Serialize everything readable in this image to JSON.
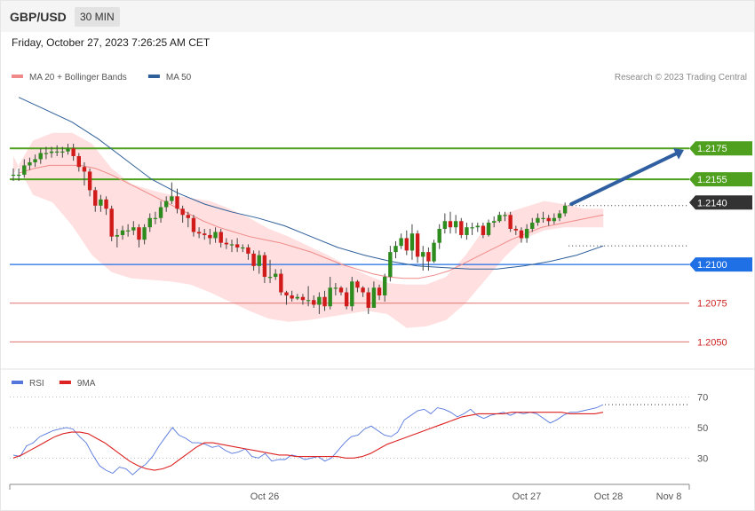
{
  "header": {
    "symbol": "GBP/USD",
    "timeframe": "30 MIN"
  },
  "date_line": "Friday, October 27, 2023 7:26:25 AM CET",
  "credit": "Research © 2023 Trading Central",
  "colors": {
    "up_candle": "#2e8b1e",
    "down_candle": "#d11a1a",
    "ma20": "#f08a8a",
    "bb_fill": "#ffd9d9",
    "ma50": "#2f5f99",
    "resistance": "#4ea01e",
    "support_blue": "#1f6fe5",
    "support_red": "#e07070",
    "arrow": "#2f5fa0",
    "rsi": "#5577dd",
    "rsi_ma": "#dd2222"
  },
  "chart_data": [
    {
      "type": "candlestick",
      "legend": [
        {
          "name": "MA 20 + Bollinger Bands",
          "color": "#f08a8a"
        },
        {
          "name": "MA 50",
          "color": "#2f5f99"
        }
      ],
      "x_tick_labels": [
        "Oct 26",
        "Oct 27",
        "Oct 28",
        "Nov 8"
      ],
      "y_range": [
        1.2033,
        1.2225
      ],
      "levels": [
        {
          "value": 1.2175,
          "label": "1.2175",
          "style": "resistance"
        },
        {
          "value": 1.2155,
          "label": "1.2155",
          "style": "resistance"
        },
        {
          "value": 1.214,
          "label": "1.2140",
          "style": "current"
        },
        {
          "value": 1.21,
          "label": "1.2100",
          "style": "support_blue"
        },
        {
          "value": 1.2075,
          "label": "1.2075",
          "style": "support_red"
        },
        {
          "value": 1.205,
          "label": "1.2050",
          "style": "support_red"
        }
      ],
      "forecast_arrow": {
        "from": 1.2139,
        "to": 1.2174
      },
      "candles": [
        [
          1.2158,
          1.2158,
          1.2162,
          1.2154
        ],
        [
          1.2158,
          1.2158,
          1.2162,
          1.2154
        ],
        [
          1.2158,
          1.2164,
          1.2168,
          1.2156
        ],
        [
          1.2164,
          1.2166,
          1.2169,
          1.2161
        ],
        [
          1.2166,
          1.2168,
          1.2171,
          1.2163
        ],
        [
          1.2168,
          1.2172,
          1.2175,
          1.2165
        ],
        [
          1.2172,
          1.2172,
          1.2176,
          1.2168
        ],
        [
          1.2172,
          1.2173,
          1.2176,
          1.2169
        ],
        [
          1.2173,
          1.2173,
          1.2177,
          1.217
        ],
        [
          1.2173,
          1.2173,
          1.2176,
          1.2169
        ],
        [
          1.2173,
          1.2175,
          1.2178,
          1.2171
        ],
        [
          1.2175,
          1.217,
          1.2178,
          1.2167
        ],
        [
          1.217,
          1.2163,
          1.2172,
          1.216
        ],
        [
          1.2163,
          1.216,
          1.2166,
          1.2151
        ],
        [
          1.216,
          1.2148,
          1.2162,
          1.2144
        ],
        [
          1.2148,
          1.2138,
          1.215,
          1.2134
        ],
        [
          1.2138,
          1.2142,
          1.2145,
          1.2134
        ],
        [
          1.2142,
          1.2136,
          1.2144,
          1.2132
        ],
        [
          1.2136,
          1.2118,
          1.2138,
          1.2115
        ],
        [
          1.2118,
          1.2119,
          1.2123,
          1.2111
        ],
        [
          1.2119,
          1.2122,
          1.2125,
          1.2116
        ],
        [
          1.2122,
          1.2122,
          1.2126,
          1.2118
        ],
        [
          1.2122,
          1.2124,
          1.2128,
          1.2119
        ],
        [
          1.2124,
          1.2116,
          1.2126,
          1.2111
        ],
        [
          1.2116,
          1.2124,
          1.2126,
          1.2113
        ],
        [
          1.2124,
          1.213,
          1.2133,
          1.2121
        ],
        [
          1.213,
          1.213,
          1.2134,
          1.2126
        ],
        [
          1.213,
          1.2137,
          1.2141,
          1.2127
        ],
        [
          1.2137,
          1.2141,
          1.2144,
          1.2134
        ],
        [
          1.2141,
          1.2144,
          1.2153,
          1.2139
        ],
        [
          1.2144,
          1.2136,
          1.2149,
          1.2133
        ],
        [
          1.2136,
          1.2132,
          1.2138,
          1.2127
        ],
        [
          1.2132,
          1.213,
          1.2134,
          1.2124
        ],
        [
          1.213,
          1.2121,
          1.2132,
          1.2118
        ],
        [
          1.2121,
          1.212,
          1.2124,
          1.2117
        ],
        [
          1.212,
          1.2119,
          1.2123,
          1.2116
        ],
        [
          1.2119,
          1.2117,
          1.2123,
          1.2113
        ],
        [
          1.2117,
          1.2121,
          1.2124,
          1.2114
        ],
        [
          1.2121,
          1.2114,
          1.2123,
          1.2111
        ],
        [
          1.2114,
          1.2113,
          1.2117,
          1.211
        ],
        [
          1.2113,
          1.2113,
          1.2116,
          1.2108
        ],
        [
          1.2113,
          1.2111,
          1.2117,
          1.2108
        ],
        [
          1.2111,
          1.2111,
          1.2113,
          1.2108
        ],
        [
          1.2111,
          1.2107,
          1.2113,
          1.2103
        ],
        [
          1.2107,
          1.2099,
          1.2109,
          1.2096
        ],
        [
          1.2099,
          1.2106,
          1.2109,
          1.2094
        ],
        [
          1.2106,
          1.2092,
          1.2108,
          1.2088
        ],
        [
          1.2092,
          1.2092,
          1.2103,
          1.2088
        ],
        [
          1.2092,
          1.2094,
          1.2097,
          1.209
        ],
        [
          1.2094,
          1.2082,
          1.2097,
          1.208
        ],
        [
          1.2082,
          1.208,
          1.2083,
          1.2074
        ],
        [
          1.208,
          1.2078,
          1.2083,
          1.2076
        ],
        [
          1.2078,
          1.2079,
          1.2081,
          1.2077
        ],
        [
          1.2079,
          1.2077,
          1.2081,
          1.2074
        ],
        [
          1.2077,
          1.2077,
          1.2086,
          1.2073
        ],
        [
          1.2077,
          1.2074,
          1.208,
          1.2072
        ],
        [
          1.2074,
          1.2079,
          1.2082,
          1.2068
        ],
        [
          1.2079,
          1.2073,
          1.2083,
          1.207
        ],
        [
          1.2073,
          1.2085,
          1.2092,
          1.2071
        ],
        [
          1.2085,
          1.2085,
          1.2088,
          1.208
        ],
        [
          1.2085,
          1.2082,
          1.2086,
          1.208
        ],
        [
          1.2082,
          1.2073,
          1.2085,
          1.2071
        ],
        [
          1.2073,
          1.2089,
          1.2092,
          1.207
        ],
        [
          1.2089,
          1.2085,
          1.209,
          1.2082
        ],
        [
          1.2085,
          1.2082,
          1.2086,
          1.2079
        ],
        [
          1.2082,
          1.2072,
          1.2085,
          1.2068
        ],
        [
          1.2072,
          1.2085,
          1.2089,
          1.2072
        ],
        [
          1.2085,
          1.208,
          1.2087,
          1.2077
        ],
        [
          1.208,
          1.2092,
          1.2094,
          1.2076
        ],
        [
          1.2092,
          1.2108,
          1.2112,
          1.2089
        ],
        [
          1.2108,
          1.2112,
          1.2115,
          1.2104
        ],
        [
          1.2112,
          1.2117,
          1.212,
          1.211
        ],
        [
          1.2117,
          1.2109,
          1.2122,
          1.2106
        ],
        [
          1.2109,
          1.212,
          1.2126,
          1.2103
        ],
        [
          1.212,
          1.2105,
          1.2122,
          1.2101
        ],
        [
          1.2105,
          1.2108,
          1.2112,
          1.2096
        ],
        [
          1.2108,
          1.2102,
          1.2111,
          1.2096
        ],
        [
          1.2102,
          1.2114,
          1.2116,
          1.2101
        ],
        [
          1.2114,
          1.2123,
          1.2126,
          1.211
        ],
        [
          1.2123,
          1.2128,
          1.2133,
          1.212
        ],
        [
          1.2128,
          1.2124,
          1.2134,
          1.212
        ],
        [
          1.2124,
          1.2128,
          1.2132,
          1.212
        ],
        [
          1.2128,
          1.2119,
          1.213,
          1.2117
        ],
        [
          1.2119,
          1.2124,
          1.2127,
          1.2116
        ],
        [
          1.2124,
          1.2124,
          1.2127,
          1.2119
        ],
        [
          1.2124,
          1.2125,
          1.2127,
          1.2121
        ],
        [
          1.2125,
          1.2119,
          1.2127,
          1.2117
        ],
        [
          1.2119,
          1.2127,
          1.2129,
          1.2118
        ],
        [
          1.2127,
          1.2128,
          1.2131,
          1.2124
        ],
        [
          1.2128,
          1.2132,
          1.2134,
          1.2127
        ],
        [
          1.2132,
          1.2132,
          1.2134,
          1.2128
        ],
        [
          1.2132,
          1.2123,
          1.2134,
          1.2121
        ],
        [
          1.2123,
          1.2122,
          1.2125,
          1.2119
        ],
        [
          1.2122,
          1.2117,
          1.2124,
          1.2114
        ],
        [
          1.2117,
          1.2123,
          1.2126,
          1.2114
        ],
        [
          1.2123,
          1.2127,
          1.213,
          1.2121
        ],
        [
          1.2127,
          1.213,
          1.2133,
          1.2125
        ],
        [
          1.213,
          1.213,
          1.2134,
          1.2127
        ],
        [
          1.213,
          1.2128,
          1.2132,
          1.2125
        ],
        [
          1.2128,
          1.213,
          1.2133,
          1.2126
        ],
        [
          1.213,
          1.2133,
          1.2135,
          1.2128
        ],
        [
          1.2133,
          1.2138,
          1.214,
          1.2131
        ]
      ],
      "ma20": [
        1.2159,
        1.2162,
        1.2164,
        1.2164,
        1.2164,
        1.2162,
        1.2158,
        1.2153,
        1.2148,
        1.2143,
        1.2138,
        1.2133,
        1.2128,
        1.2124,
        1.2121,
        1.2118,
        1.2116,
        1.2114,
        1.2111,
        1.2108,
        1.2104,
        1.21,
        1.2097,
        1.2094,
        1.2092,
        1.2091,
        1.2091,
        1.2093,
        1.2096,
        1.2101,
        1.2106,
        1.2111,
        1.2116,
        1.212,
        1.2124,
        1.2126,
        1.2128,
        1.213,
        1.2132
      ],
      "ma20_x_range": [
        1.0,
        108.0
      ],
      "bb_upper": [
        1.2158,
        1.218,
        1.2185,
        1.2185,
        1.2178,
        1.2162,
        1.2152,
        1.2148,
        1.2145,
        1.2143,
        1.2141,
        1.2136,
        1.213,
        1.2123,
        1.2118,
        1.2112,
        1.2106,
        1.2099,
        1.2093,
        1.2088,
        1.2087,
        1.2087,
        1.2092,
        1.2106,
        1.2124,
        1.2133,
        1.2137,
        1.2141,
        1.2139,
        1.2136,
        1.2136
      ],
      "bb_lower": [
        1.217,
        1.2145,
        1.214,
        1.2125,
        1.2106,
        1.2095,
        1.2091,
        1.209,
        1.2089,
        1.2087,
        1.2082,
        1.2076,
        1.207,
        1.2065,
        1.2063,
        1.2064,
        1.2066,
        1.2068,
        1.207,
        1.2068,
        1.2059,
        1.206,
        1.2064,
        1.2075,
        1.209,
        1.2105,
        1.2117,
        1.2122,
        1.2124,
        1.2124,
        1.2124
      ],
      "bb_x_range": [
        0.0,
        108.0
      ],
      "ma50": [
        1.2208,
        1.22,
        1.2192,
        1.2181,
        1.2168,
        1.2155,
        1.2146,
        1.2139,
        1.2134,
        1.213,
        1.2125,
        1.2118,
        1.2111,
        1.2106,
        1.2102,
        1.2099,
        1.2098,
        1.2097,
        1.2097,
        1.2099,
        1.2102,
        1.2106,
        1.2112
      ],
      "ma50_x_range": [
        1.0,
        108.0
      ]
    },
    {
      "type": "line",
      "legend": [
        {
          "name": "RSI",
          "color": "#5577dd"
        },
        {
          "name": "9MA",
          "color": "#dd2222"
        }
      ],
      "y_tick_labels": [
        "70",
        "50",
        "30"
      ],
      "y_range": [
        11,
        86
      ],
      "series": [
        {
          "name": "RSI",
          "values": [
            32,
            31,
            38,
            40,
            44,
            46,
            48,
            49,
            50,
            49,
            44,
            40,
            32,
            25,
            22,
            20,
            24,
            23,
            19,
            23,
            26,
            31,
            38,
            44,
            50,
            45,
            43,
            40,
            40,
            39,
            37,
            38,
            35,
            33,
            34,
            36,
            31,
            30,
            33,
            28,
            29,
            29,
            32,
            31,
            29,
            30,
            31,
            28,
            30,
            35,
            40,
            44,
            45,
            49,
            51,
            48,
            45,
            44,
            47,
            55,
            58,
            61,
            62,
            59,
            63,
            62,
            60,
            57,
            59,
            62,
            58,
            56,
            58,
            59,
            60,
            58,
            60,
            59,
            60,
            59,
            56,
            53,
            55,
            58,
            60,
            60,
            61,
            62,
            63,
            65
          ]
        },
        {
          "name": "9MA",
          "values": [
            30,
            32,
            35,
            38,
            41,
            44,
            46,
            47,
            47,
            46,
            43,
            40,
            36,
            32,
            28,
            25,
            23,
            22,
            23,
            25,
            29,
            33,
            37,
            40,
            40,
            39,
            38,
            37,
            36,
            35,
            34,
            33,
            32,
            32,
            31,
            31,
            31,
            31,
            31,
            31,
            30,
            30,
            31,
            33,
            36,
            39,
            41,
            43,
            45,
            47,
            49,
            51,
            53,
            55,
            57,
            58,
            59,
            59,
            59,
            59,
            60,
            60,
            60,
            60,
            60,
            60,
            60,
            59,
            59,
            59,
            59,
            60
          ]
        }
      ]
    }
  ]
}
